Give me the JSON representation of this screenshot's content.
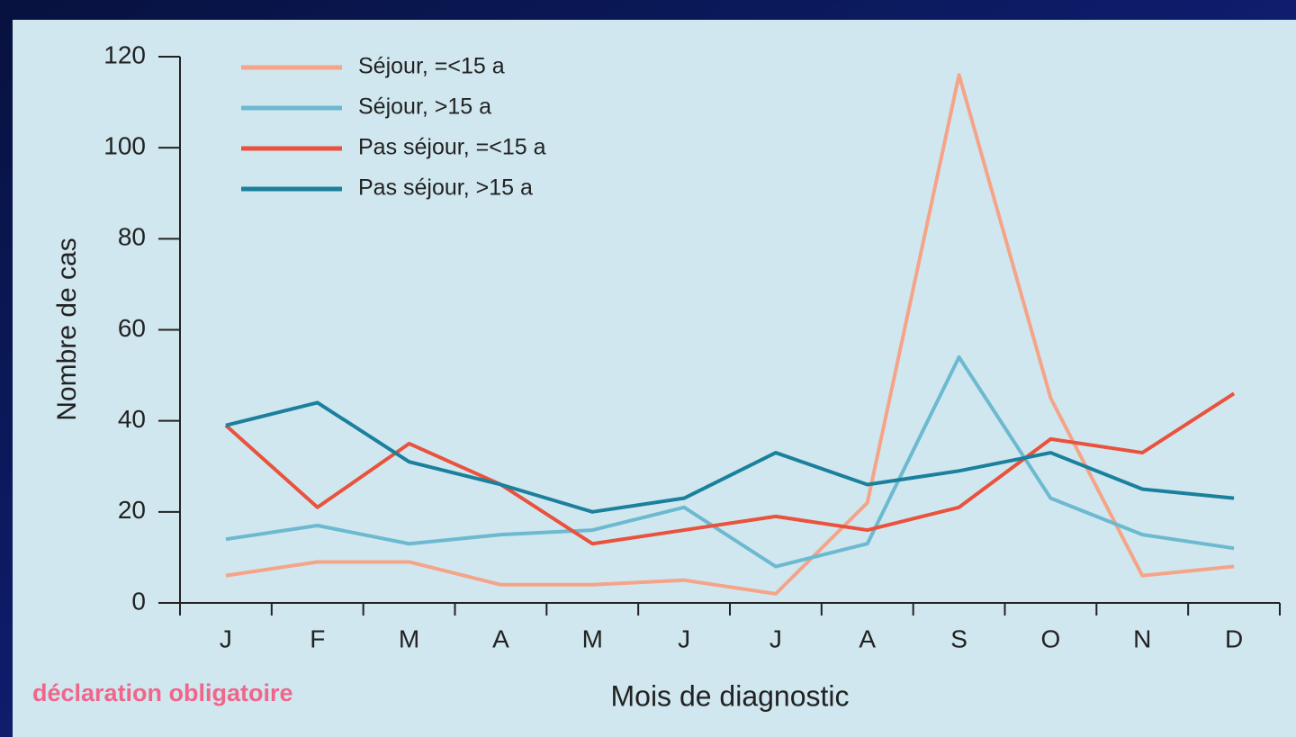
{
  "chart_data": {
    "type": "line",
    "y_label": "Nombre de cas",
    "x_label": "Mois de diagnostic",
    "annotation": "déclaration obligatoire",
    "categories": [
      "J",
      "F",
      "M",
      "A",
      "M",
      "J",
      "J",
      "A",
      "S",
      "O",
      "N",
      "D"
    ],
    "series": [
      {
        "name": "Séjour, =<15 a",
        "color": "#f5a488",
        "values": [
          6,
          9,
          9,
          4,
          4,
          5,
          2,
          22,
          116,
          45,
          6,
          8
        ]
      },
      {
        "name": "Séjour, >15 a",
        "color": "#6cb9d0",
        "values": [
          14,
          17,
          13,
          15,
          16,
          21,
          8,
          13,
          54,
          23,
          15,
          12
        ]
      },
      {
        "name": "Pas séjour, =<15 a",
        "color": "#e9523c",
        "values": [
          39,
          21,
          35,
          26,
          13,
          16,
          19,
          16,
          21,
          36,
          33,
          46
        ]
      },
      {
        "name": "Pas séjour, >15 a",
        "color": "#1a809c",
        "values": [
          39,
          44,
          31,
          26,
          20,
          23,
          33,
          26,
          29,
          33,
          25,
          23
        ]
      }
    ],
    "ylim": [
      0,
      120
    ],
    "yticks": [
      0,
      20,
      40,
      60,
      80,
      100,
      120
    ],
    "legend": "top-left"
  }
}
